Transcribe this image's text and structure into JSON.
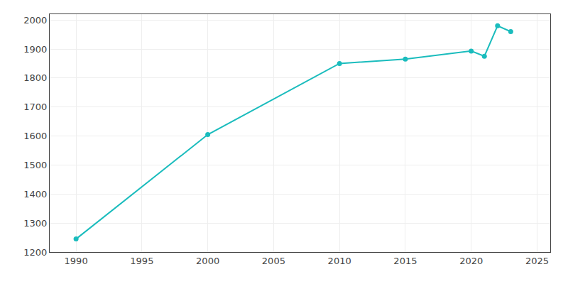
{
  "chart_data": {
    "type": "line",
    "x": [
      1990,
      2000,
      2010,
      2015,
      2020,
      2021,
      2022,
      2023
    ],
    "values": [
      1245,
      1605,
      1850,
      1865,
      1893,
      1875,
      1980,
      1960
    ],
    "color": "#1ABCBD",
    "marker": "circle",
    "xlim": [
      1988,
      2026
    ],
    "xticks": [
      1990,
      1995,
      2000,
      2005,
      2010,
      2015,
      2020,
      2025
    ],
    "ylim": [
      1200,
      2020
    ],
    "yticks": [
      1200,
      1300,
      1400,
      1500,
      1600,
      1700,
      1800,
      1900,
      2000
    ],
    "grid": true
  }
}
